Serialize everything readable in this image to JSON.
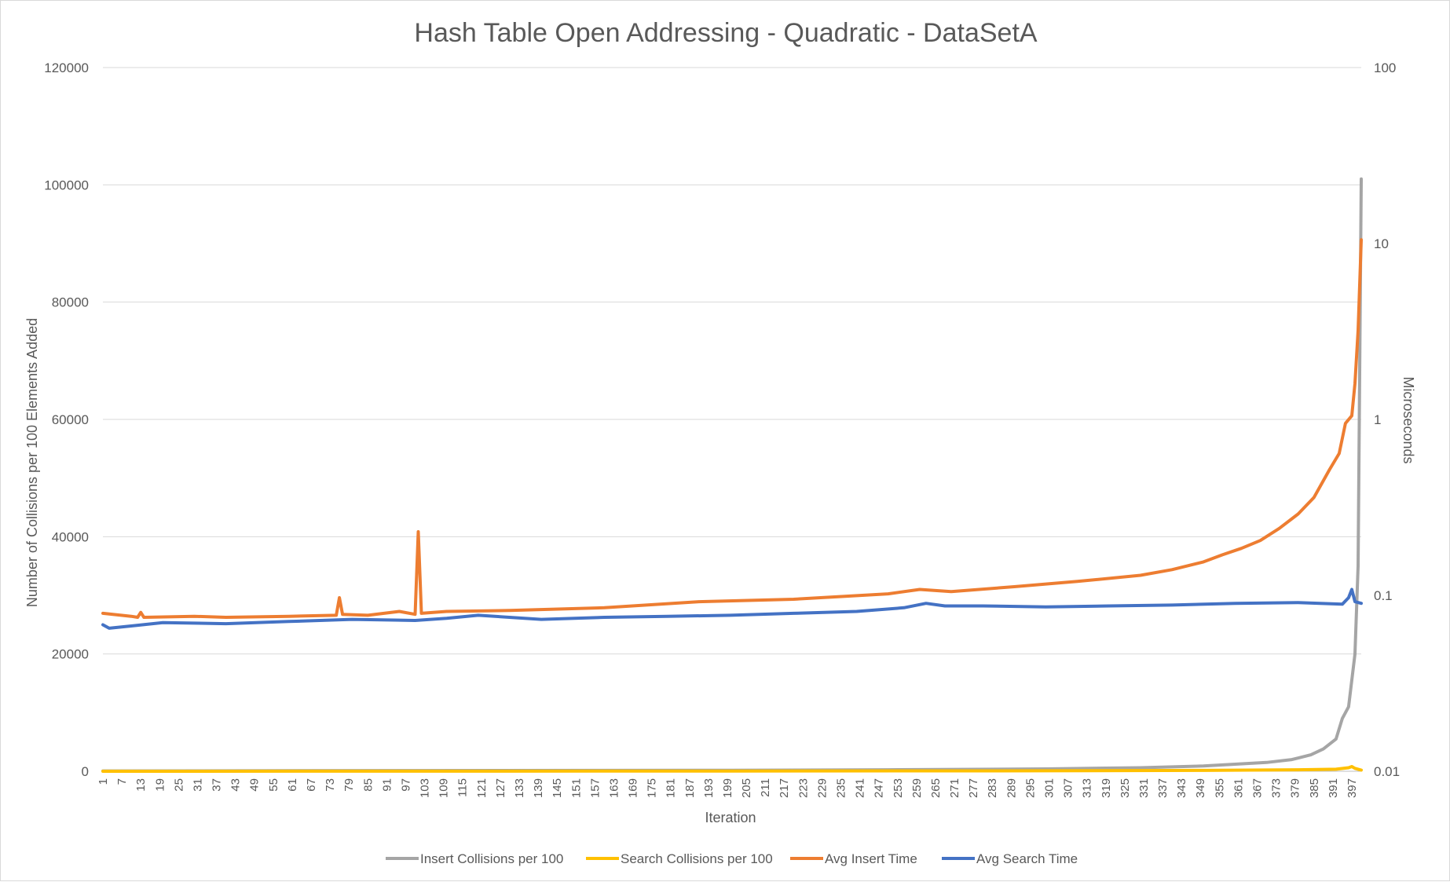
{
  "chart_data": {
    "type": "line",
    "title": "Hash Table Open Addressing - Quadratic - DataSetA",
    "xlabel": "Iteration",
    "ylabel": "Number of Collisions per 100 Elements Added",
    "y2label": "Microseconds",
    "ylim": [
      0,
      120000
    ],
    "y_ticks": [
      "0",
      "20000",
      "40000",
      "60000",
      "80000",
      "100000",
      "120000"
    ],
    "y2_scale": "log",
    "y2lim": [
      0.01,
      100
    ],
    "y2_ticks": [
      "0.01",
      "0.1",
      "1",
      "10",
      "100"
    ],
    "x_range": [
      1,
      400
    ],
    "x_ticks": [
      "1",
      "7",
      "13",
      "19",
      "25",
      "31",
      "37",
      "43",
      "49",
      "55",
      "61",
      "67",
      "73",
      "79",
      "85",
      "91",
      "97",
      "103",
      "109",
      "115",
      "121",
      "127",
      "133",
      "139",
      "145",
      "151",
      "157",
      "163",
      "169",
      "175",
      "181",
      "187",
      "193",
      "199",
      "205",
      "211",
      "217",
      "223",
      "229",
      "235",
      "241",
      "247",
      "253",
      "259",
      "265",
      "271",
      "277",
      "283",
      "289",
      "295",
      "301",
      "307",
      "313",
      "319",
      "325",
      "331",
      "337",
      "343",
      "349",
      "355",
      "361",
      "367",
      "373",
      "379",
      "385",
      "391",
      "397"
    ],
    "grid": true,
    "legend_position": "bottom",
    "series": [
      {
        "name": "Insert Collisions per 100",
        "axis": "left",
        "color": "#a5a5a5",
        "points": [
          [
            1,
            50
          ],
          [
            100,
            120
          ],
          [
            200,
            180
          ],
          [
            250,
            250
          ],
          [
            300,
            400
          ],
          [
            330,
            600
          ],
          [
            350,
            900
          ],
          [
            360,
            1200
          ],
          [
            370,
            1500
          ],
          [
            378,
            2000
          ],
          [
            384,
            2800
          ],
          [
            388,
            3800
          ],
          [
            392,
            5500
          ],
          [
            394,
            9000
          ],
          [
            396,
            11000
          ],
          [
            398,
            20000
          ],
          [
            399,
            35000
          ],
          [
            400,
            101000
          ]
        ]
      },
      {
        "name": "Search Collisions per 100",
        "axis": "left",
        "color": "#ffc000",
        "points": [
          [
            1,
            0
          ],
          [
            100,
            20
          ],
          [
            200,
            40
          ],
          [
            300,
            80
          ],
          [
            350,
            150
          ],
          [
            380,
            250
          ],
          [
            392,
            350
          ],
          [
            396,
            600
          ],
          [
            397,
            800
          ],
          [
            398,
            500
          ],
          [
            400,
            200
          ]
        ]
      },
      {
        "name": "Avg Insert Time",
        "axis": "right",
        "color": "#ed7d31",
        "points": [
          [
            1,
            0.079
          ],
          [
            10,
            0.076
          ],
          [
            12,
            0.075
          ],
          [
            13,
            0.08
          ],
          [
            14,
            0.075
          ],
          [
            30,
            0.076
          ],
          [
            40,
            0.075
          ],
          [
            60,
            0.076
          ],
          [
            75,
            0.077
          ],
          [
            76,
            0.097
          ],
          [
            77,
            0.078
          ],
          [
            85,
            0.077
          ],
          [
            95,
            0.081
          ],
          [
            100,
            0.078
          ],
          [
            101,
            0.23
          ],
          [
            102,
            0.079
          ],
          [
            110,
            0.081
          ],
          [
            130,
            0.082
          ],
          [
            160,
            0.085
          ],
          [
            190,
            0.092
          ],
          [
            220,
            0.095
          ],
          [
            250,
            0.102
          ],
          [
            260,
            0.108
          ],
          [
            270,
            0.105
          ],
          [
            290,
            0.112
          ],
          [
            310,
            0.12
          ],
          [
            330,
            0.13
          ],
          [
            340,
            0.14
          ],
          [
            350,
            0.155
          ],
          [
            356,
            0.17
          ],
          [
            362,
            0.185
          ],
          [
            368,
            0.205
          ],
          [
            374,
            0.24
          ],
          [
            380,
            0.29
          ],
          [
            385,
            0.36
          ],
          [
            390,
            0.52
          ],
          [
            393,
            0.64
          ],
          [
            395,
            0.95
          ],
          [
            397,
            1.05
          ],
          [
            398,
            1.6
          ],
          [
            399,
            3.2
          ],
          [
            400,
            10.5
          ]
        ]
      },
      {
        "name": "Avg Search Time",
        "axis": "right",
        "color": "#4472c4",
        "points": [
          [
            1,
            0.068
          ],
          [
            3,
            0.065
          ],
          [
            10,
            0.067
          ],
          [
            20,
            0.07
          ],
          [
            40,
            0.069
          ],
          [
            60,
            0.071
          ],
          [
            80,
            0.073
          ],
          [
            100,
            0.072
          ],
          [
            110,
            0.074
          ],
          [
            120,
            0.077
          ],
          [
            140,
            0.073
          ],
          [
            160,
            0.075
          ],
          [
            180,
            0.076
          ],
          [
            200,
            0.077
          ],
          [
            220,
            0.079
          ],
          [
            240,
            0.081
          ],
          [
            255,
            0.085
          ],
          [
            262,
            0.09
          ],
          [
            268,
            0.087
          ],
          [
            280,
            0.087
          ],
          [
            300,
            0.086
          ],
          [
            320,
            0.087
          ],
          [
            340,
            0.088
          ],
          [
            360,
            0.09
          ],
          [
            380,
            0.091
          ],
          [
            394,
            0.089
          ],
          [
            396,
            0.097
          ],
          [
            397,
            0.108
          ],
          [
            398,
            0.092
          ],
          [
            400,
            0.09
          ]
        ]
      }
    ]
  }
}
